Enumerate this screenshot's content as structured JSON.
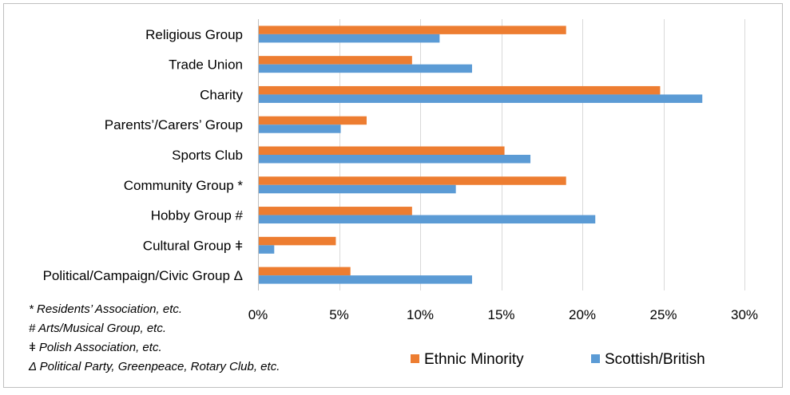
{
  "chart_data": {
    "type": "bar",
    "orientation": "horizontal",
    "categories": [
      "Religious Group",
      "Trade Union",
      "Charity",
      "Parents’/Carers’ Group",
      "Sports Club",
      "Community Group *",
      "Hobby Group #",
      "Cultural Group ǂ",
      "Political/Campaign/Civic Group Δ"
    ],
    "series": [
      {
        "name": "Ethnic Minority",
        "color": "#ED7D31",
        "values": [
          19.0,
          9.5,
          24.8,
          6.7,
          15.2,
          19.0,
          9.5,
          4.8,
          5.7
        ]
      },
      {
        "name": "Scottish/British",
        "color": "#5B9BD5",
        "values": [
          11.2,
          13.2,
          27.4,
          5.1,
          16.8,
          12.2,
          20.8,
          1.0,
          13.2
        ]
      }
    ],
    "xlim": [
      0,
      30
    ],
    "xticks": [
      "0%",
      "5%",
      "10%",
      "15%",
      "20%",
      "25%",
      "30%"
    ],
    "grid": true,
    "legend_position": "bottom-right"
  },
  "footnotes": [
    "* Residents’ Association, etc.",
    "# Arts/Musical Group, etc.",
    "ǂ Polish Association, etc.",
    "Δ Political Party, Greenpeace, Rotary Club, etc."
  ]
}
